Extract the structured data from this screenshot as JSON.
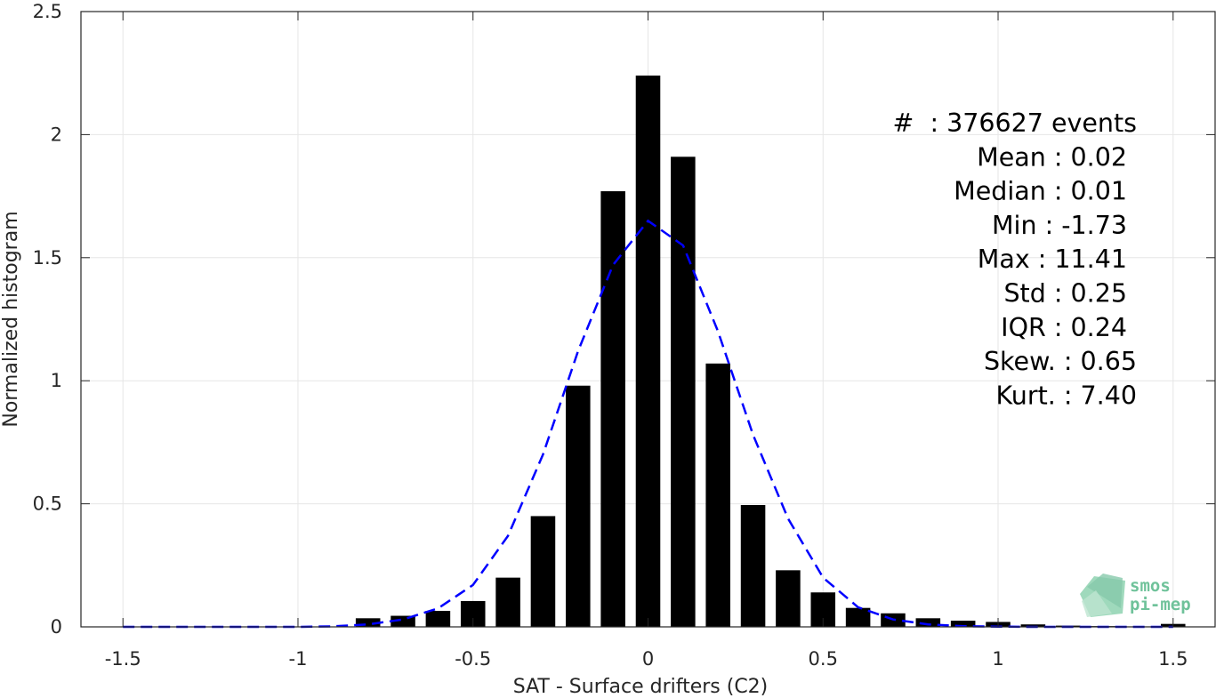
{
  "chart_data": {
    "type": "bar",
    "xlabel": "SAT - Surface drifters (C2)",
    "ylabel": "Normalized histogram",
    "xlim": [
      -1.62,
      1.62
    ],
    "ylim": [
      0,
      2.5
    ],
    "xticks": [
      -1.5,
      -1,
      -0.5,
      0,
      0.5,
      1,
      1.5
    ],
    "xtick_labels": [
      "-1.5",
      "-1",
      "-0.5",
      "0",
      "0.5",
      "1",
      "1.5"
    ],
    "yticks": [
      0,
      0.5,
      1,
      1.5,
      2,
      2.5
    ],
    "ytick_labels": [
      "0",
      "0.5",
      "1",
      "1.5",
      "2",
      "2.5"
    ],
    "grid": true,
    "bar_width": 0.07,
    "bar_color": "#000000",
    "bars": {
      "x": [
        -0.8,
        -0.7,
        -0.6,
        -0.5,
        -0.4,
        -0.3,
        -0.2,
        -0.1,
        0.0,
        0.1,
        0.2,
        0.3,
        0.4,
        0.5,
        0.6,
        0.7,
        0.8,
        0.9,
        1.0,
        1.1,
        1.2,
        1.3,
        1.4,
        1.5
      ],
      "values": [
        0.035,
        0.045,
        0.065,
        0.105,
        0.2,
        0.45,
        0.98,
        1.77,
        2.24,
        1.91,
        1.07,
        0.495,
        0.23,
        0.14,
        0.077,
        0.055,
        0.035,
        0.025,
        0.02,
        0.01,
        0.005,
        0.003,
        0.002,
        0.012
      ]
    },
    "fit_curve": {
      "style": "dashed",
      "color": "#0000ff",
      "x": [
        -1.5,
        -1.4,
        -1.3,
        -1.2,
        -1.1,
        -1.0,
        -0.9,
        -0.8,
        -0.7,
        -0.6,
        -0.5,
        -0.4,
        -0.3,
        -0.2,
        -0.1,
        0.0,
        0.1,
        0.2,
        0.3,
        0.4,
        0.5,
        0.6,
        0.7,
        0.8,
        0.9,
        1.0,
        1.1,
        1.2,
        1.3,
        1.4,
        1.5
      ],
      "y": [
        0,
        0,
        0,
        0,
        0,
        0,
        0.002,
        0.01,
        0.03,
        0.075,
        0.17,
        0.37,
        0.7,
        1.12,
        1.47,
        1.65,
        1.55,
        1.2,
        0.78,
        0.44,
        0.2,
        0.08,
        0.03,
        0.01,
        0.003,
        0.001,
        0,
        0,
        0,
        0,
        0
      ]
    },
    "annotations": [
      "#  : 376627 events",
      "Mean : 0.02",
      "Median : 0.01",
      "Min : -1.73",
      "Max : 11.41",
      "Std : 0.25",
      "IQR : 0.24",
      "Skew. : 0.65",
      "Kurt. : 7.40"
    ]
  },
  "logo": {
    "line1": "smos",
    "line2": "pi-mep",
    "color": "#6fc29a"
  }
}
